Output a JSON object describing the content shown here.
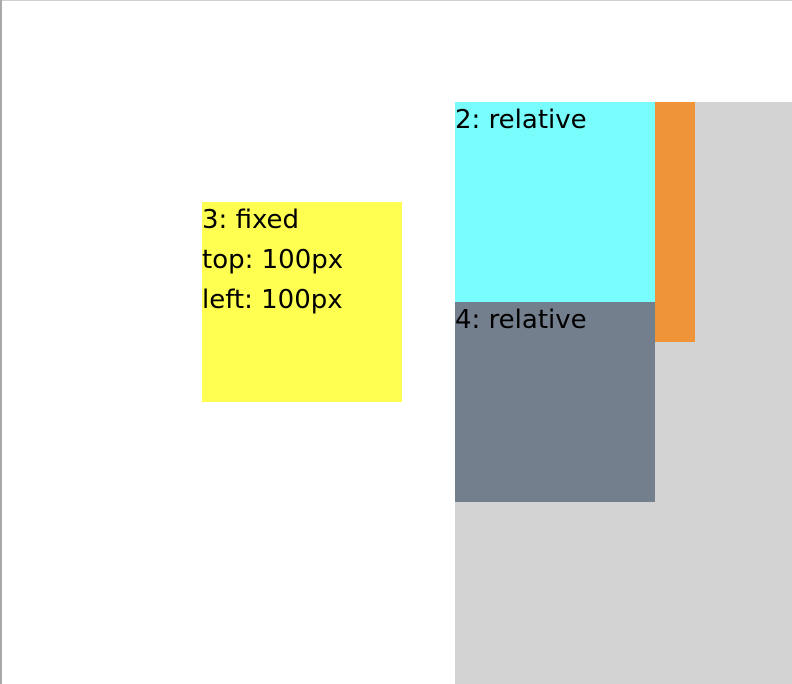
{
  "boxes": {
    "box2": {
      "label": "2: relative",
      "color": "#78fcfc"
    },
    "box3": {
      "lines": [
        "3: fixed",
        "top: 100px",
        "left: 100px"
      ],
      "color": "#ffff52"
    },
    "box4": {
      "label": "4: relative",
      "color": "#747f8d"
    },
    "orange_strip": {
      "color": "#f0943a"
    },
    "gray_panel": {
      "color": "#d3d3d3"
    }
  }
}
